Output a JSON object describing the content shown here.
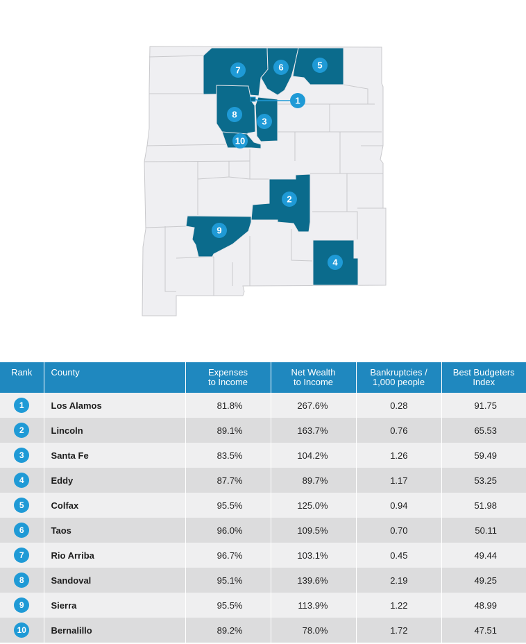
{
  "colors": {
    "highlight": "#0b6b8c",
    "base_county": "#efeff2",
    "border": "#c9c9cc",
    "marker": "#1f9ad6",
    "header_bg": "#1f88bf"
  },
  "markers": [
    {
      "rank": "1",
      "county": "Los Alamos"
    },
    {
      "rank": "2",
      "county": "Lincoln"
    },
    {
      "rank": "3",
      "county": "Santa Fe"
    },
    {
      "rank": "4",
      "county": "Eddy"
    },
    {
      "rank": "5",
      "county": "Colfax"
    },
    {
      "rank": "6",
      "county": "Taos"
    },
    {
      "rank": "7",
      "county": "Rio Arriba"
    },
    {
      "rank": "8",
      "county": "Sandoval"
    },
    {
      "rank": "9",
      "county": "Sierra"
    },
    {
      "rank": "10",
      "county": "Bernalillo"
    }
  ],
  "table": {
    "headers": {
      "rank": "Rank",
      "county": "County",
      "expenses": [
        "Expenses",
        "to Income"
      ],
      "net_wealth": [
        "Net Wealth",
        "to Income"
      ],
      "bankruptcies": [
        "Bankruptcies /",
        "1,000 people"
      ],
      "index": [
        "Best Budgeters",
        "Index"
      ]
    },
    "rows": [
      {
        "rank": "1",
        "county": "Los Alamos",
        "expenses": "81.8%",
        "net_wealth": "267.6%",
        "bankruptcies": "0.28",
        "index": "91.75"
      },
      {
        "rank": "2",
        "county": "Lincoln",
        "expenses": "89.1%",
        "net_wealth": "163.7%",
        "bankruptcies": "0.76",
        "index": "65.53"
      },
      {
        "rank": "3",
        "county": "Santa Fe",
        "expenses": "83.5%",
        "net_wealth": "104.2%",
        "bankruptcies": "1.26",
        "index": "59.49"
      },
      {
        "rank": "4",
        "county": "Eddy",
        "expenses": "87.7%",
        "net_wealth": "89.7%",
        "bankruptcies": "1.17",
        "index": "53.25"
      },
      {
        "rank": "5",
        "county": "Colfax",
        "expenses": "95.5%",
        "net_wealth": "125.0%",
        "bankruptcies": "0.94",
        "index": "51.98"
      },
      {
        "rank": "6",
        "county": "Taos",
        "expenses": "96.0%",
        "net_wealth": "109.5%",
        "bankruptcies": "0.70",
        "index": "50.11"
      },
      {
        "rank": "7",
        "county": "Rio Arriba",
        "expenses": "96.7%",
        "net_wealth": "103.1%",
        "bankruptcies": "0.45",
        "index": "49.44"
      },
      {
        "rank": "8",
        "county": "Sandoval",
        "expenses": "95.1%",
        "net_wealth": "139.6%",
        "bankruptcies": "2.19",
        "index": "49.25"
      },
      {
        "rank": "9",
        "county": "Sierra",
        "expenses": "95.5%",
        "net_wealth": "113.9%",
        "bankruptcies": "1.22",
        "index": "48.99"
      },
      {
        "rank": "10",
        "county": "Bernalillo",
        "expenses": "89.2%",
        "net_wealth": "78.0%",
        "bankruptcies": "1.72",
        "index": "47.51"
      }
    ]
  }
}
